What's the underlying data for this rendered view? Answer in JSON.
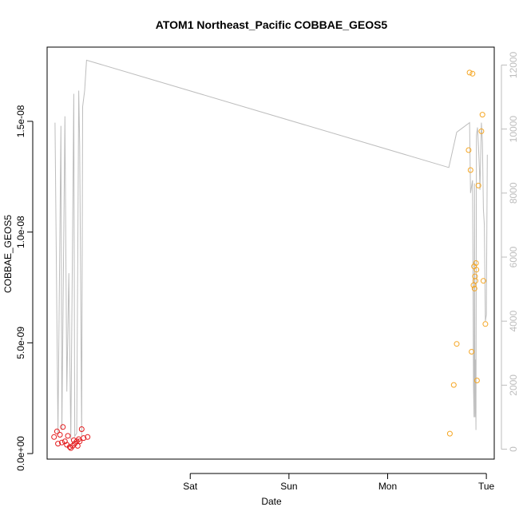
{
  "chart_data": {
    "type": "scatter",
    "title": "ATOM1 Northeast_Pacific COBBAE_GEOS5",
    "xlabel": "Date",
    "ylabel": "COBBAE_GEOS5",
    "x_ticks": [
      "Sat",
      "Sun",
      "Mon",
      "Tue"
    ],
    "x_ticks_pos": [
      1,
      2,
      3,
      4
    ],
    "xlim": [
      -0.45,
      4.08
    ],
    "ylim": [
      -2.5e-10,
      1.835e-08
    ],
    "y_ticks": [
      0,
      5e-09,
      1e-08,
      1.5e-08
    ],
    "y_tick_labels": [
      "0.0e+00",
      "5.0e-09",
      "1.0e-08",
      "1.5e-08"
    ],
    "y2_ticks": [
      0,
      2000,
      4000,
      6000,
      8000,
      10000,
      12000
    ],
    "y2_tick_labels": [
      "0",
      "2000",
      "4000",
      "6000",
      "8000",
      "10000",
      "12000"
    ],
    "y2lim": [
      -310,
      12560
    ],
    "grid": false,
    "colors": {
      "series_red": "#e31a1c",
      "series_orange": "#f5a623",
      "altitude_line": "#bdbdbd",
      "right_axis": "#bdbdbd",
      "axis": "#000000"
    },
    "series": [
      {
        "marker": "open-circle",
        "color": "#e31a1c",
        "points": [
          [
            -0.38,
            7.5e-10
          ],
          [
            -0.35,
            1e-09
          ],
          [
            -0.34,
            4.5e-10
          ],
          [
            -0.32,
            8.5e-10
          ],
          [
            -0.3,
            5e-10
          ],
          [
            -0.29,
            1.2e-09
          ],
          [
            -0.27,
            5.5e-10
          ],
          [
            -0.25,
            4e-10
          ],
          [
            -0.24,
            8e-10
          ],
          [
            -0.22,
            3e-10
          ],
          [
            -0.21,
            2.5e-10
          ],
          [
            -0.19,
            3.5e-10
          ],
          [
            -0.18,
            6e-10
          ],
          [
            -0.17,
            4.5e-10
          ],
          [
            -0.15,
            5.5e-10
          ],
          [
            -0.14,
            3.5e-10
          ],
          [
            -0.13,
            6.5e-10
          ],
          [
            -0.12,
            5.5e-10
          ],
          [
            -0.1,
            1.1e-09
          ],
          [
            -0.08,
            7e-10
          ],
          [
            -0.04,
            7.5e-10
          ]
        ]
      },
      {
        "marker": "open-circle",
        "color": "#f5a623",
        "points": [
          [
            3.63,
            9e-10
          ],
          [
            3.67,
            3.1e-09
          ],
          [
            3.7,
            4.95e-09
          ],
          [
            3.82,
            1.37e-08
          ],
          [
            3.83,
            1.72e-08
          ],
          [
            3.84,
            1.28e-08
          ],
          [
            3.85,
            4.6e-09
          ],
          [
            3.86,
            1.715e-08
          ],
          [
            3.87,
            7.6e-09
          ],
          [
            3.875,
            8.45e-09
          ],
          [
            3.88,
            7.45e-09
          ],
          [
            3.885,
            8e-09
          ],
          [
            3.89,
            7.8e-09
          ],
          [
            3.895,
            8.6e-09
          ],
          [
            3.9,
            8.3e-09
          ],
          [
            3.905,
            3.3e-09
          ],
          [
            3.92,
            1.21e-08
          ],
          [
            3.95,
            1.455e-08
          ],
          [
            3.96,
            1.53e-08
          ],
          [
            3.97,
            7.8e-09
          ],
          [
            3.99,
            5.85e-09
          ]
        ]
      }
    ],
    "altitude_line": {
      "axis": "right",
      "color": "#bdbdbd",
      "points": [
        [
          -0.37,
          10200
        ],
        [
          -0.34,
          500
        ],
        [
          -0.31,
          10100
        ],
        [
          -0.3,
          600
        ],
        [
          -0.27,
          10400
        ],
        [
          -0.25,
          1800
        ],
        [
          -0.23,
          5500
        ],
        [
          -0.21,
          300
        ],
        [
          -0.18,
          11100
        ],
        [
          -0.17,
          400
        ],
        [
          -0.15,
          500
        ],
        [
          -0.13,
          11200
        ],
        [
          -0.12,
          9500
        ],
        [
          -0.1,
          400
        ],
        [
          -0.09,
          10700
        ],
        [
          -0.07,
          11200
        ],
        [
          -0.05,
          12150
        ],
        [
          3.62,
          8800
        ],
        [
          3.7,
          9900
        ],
        [
          3.83,
          10200
        ],
        [
          3.84,
          8000
        ],
        [
          3.86,
          8400
        ],
        [
          3.87,
          2000
        ],
        [
          3.875,
          1000
        ],
        [
          3.88,
          8300
        ],
        [
          3.885,
          1000
        ],
        [
          3.89,
          2800
        ],
        [
          3.895,
          600
        ],
        [
          3.9,
          9800
        ],
        [
          3.91,
          10050
        ],
        [
          3.92,
          9500
        ],
        [
          3.93,
          8700
        ],
        [
          3.935,
          8100
        ],
        [
          3.95,
          10200
        ],
        [
          3.96,
          9600
        ],
        [
          3.97,
          7500
        ],
        [
          3.98,
          7000
        ],
        [
          3.99,
          4000
        ],
        [
          4.0,
          4200
        ],
        [
          4.01,
          9200
        ]
      ]
    }
  }
}
